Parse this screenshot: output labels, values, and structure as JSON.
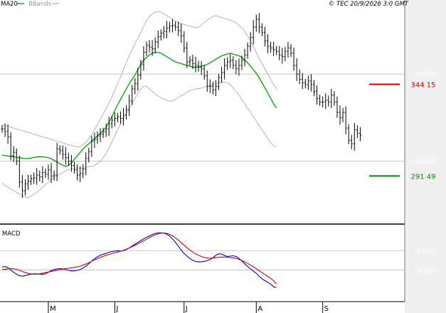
{
  "header": {
    "ma_label": "MA20",
    "bbands_label": "BBands",
    "copyright": "© TEC 20/9/2026 3:0 GMT"
  },
  "colors": {
    "background": "#ffffff",
    "grid": "#c8c8c8",
    "axis_band": "#f0f0f0",
    "ma_line": "#00a000",
    "bands": "#b4b4b4",
    "price_bars": "#000000",
    "macd_line": "#0000cc",
    "signal_line": "#cc0000",
    "resistance": "#cc0000",
    "support": "#008800"
  },
  "chart_data": [
    {
      "type": "ohlc",
      "panel": "price",
      "ylim": [
        27000,
        38600
      ],
      "yticks": [
        {
          "value": 30000,
          "label": "30000"
        },
        {
          "value": 35000,
          "label": "35000"
        }
      ],
      "x_ticks": [
        {
          "index": 16,
          "label": "M"
        },
        {
          "index": 39,
          "label": "J"
        },
        {
          "index": 63,
          "label": "J"
        },
        {
          "index": 88,
          "label": "A"
        },
        {
          "index": 111,
          "label": "S"
        }
      ],
      "indicators": [
        {
          "name": "MA20"
        },
        {
          "name": "BBands"
        }
      ],
      "levels": [
        {
          "value": 34415,
          "label": "344 15",
          "kind": "resistance"
        },
        {
          "value": 29149,
          "label": "291 49",
          "kind": "support"
        }
      ],
      "series": {
        "close": [
          31850,
          31700,
          31400,
          30300,
          30500,
          30000,
          28800,
          28300,
          28700,
          28850,
          29000,
          29050,
          29200,
          29100,
          29350,
          29250,
          29500,
          29150,
          29200,
          30700,
          30600,
          30400,
          30200,
          30000,
          29750,
          29500,
          29200,
          29300,
          29550,
          30150,
          30550,
          31150,
          31250,
          31450,
          31550,
          31700,
          31850,
          32150,
          32350,
          32450,
          32550,
          32450,
          32650,
          32950,
          33450,
          34150,
          34450,
          34950,
          35550,
          36250,
          36650,
          36550,
          36450,
          36850,
          37150,
          37350,
          37450,
          37650,
          37750,
          37800,
          37700,
          37500,
          37200,
          36500,
          35700,
          35800,
          35600,
          35500,
          35400,
          35300,
          34900,
          34300,
          34300,
          34100,
          34300,
          34800,
          35100,
          35500,
          35700,
          35800,
          35500,
          35300,
          35500,
          35800,
          36100,
          36600,
          37100,
          37700,
          38150,
          37700,
          37400,
          36900,
          36600,
          36500,
          36400,
          36300,
          36100,
          36000,
          36300,
          36500,
          36200,
          35500,
          35000,
          34700,
          34500,
          34400,
          34600,
          34400,
          34000,
          33600,
          33400,
          33400,
          33500,
          33400,
          33800,
          33400,
          32800,
          32500,
          32800,
          31900,
          31200,
          31000,
          31800,
          31600,
          31500
        ],
        "ma20": [
          30350,
          30320,
          30300,
          30270,
          30250,
          30220,
          30200,
          30170,
          30150,
          30150,
          30180,
          30210,
          30240,
          30260,
          30250,
          30230,
          30200,
          30130,
          30050,
          29950,
          29850,
          29760,
          29700,
          29750,
          29900,
          30100,
          30300,
          30500,
          30700,
          30850,
          31000,
          31150,
          31300,
          31450,
          31600,
          31750,
          31950,
          32250,
          32550,
          32900,
          33250,
          33550,
          33850,
          34150,
          34450,
          34700,
          34950,
          35250,
          35550,
          35800,
          35950,
          36100,
          36200,
          36250,
          36250,
          36200,
          36100,
          36000,
          35900,
          35800,
          35700,
          35650,
          35600,
          35550,
          35500,
          35450,
          35400,
          35400,
          35400,
          35450,
          35500,
          35550,
          35650,
          35750,
          35850,
          35950,
          36050,
          36100,
          36150,
          36200,
          36150,
          36100,
          36050,
          35950,
          35800,
          35650,
          35450,
          35250,
          35050,
          34800,
          34500,
          34200,
          33900,
          33600,
          33300,
          33050
        ],
        "bb_upper": [
          32100,
          32050,
          32000,
          31950,
          31900,
          31850,
          31800,
          31750,
          31700,
          31650,
          31600,
          31550,
          31500,
          31450,
          31400,
          31350,
          31300,
          31250,
          31200,
          31150,
          31100,
          31050,
          31000,
          30950,
          30900,
          30850,
          30800,
          30850,
          30950,
          31100,
          31300,
          31550,
          31800,
          32100,
          32400,
          32700,
          33000,
          33350,
          33700,
          34050,
          34450,
          34850,
          35250,
          35650,
          36050,
          36400,
          36750,
          37050,
          37400,
          37750,
          38050,
          38300,
          38450,
          38550,
          38600,
          38550,
          38450,
          38350,
          38250,
          38150,
          38050,
          37950,
          37900,
          37850,
          37800,
          37750,
          37700,
          37650,
          37700,
          37800,
          37950,
          38100,
          38200,
          38300,
          38350,
          38300,
          38250,
          38200,
          38150,
          38100,
          38050,
          37950,
          37800,
          37650,
          37450,
          37200,
          36900,
          36600,
          36250,
          35900,
          35600,
          35300,
          35000,
          34700,
          34400,
          34150
        ],
        "bb_lower": [
          28750,
          28600,
          28500,
          28400,
          28300,
          28200,
          28100,
          28000,
          27950,
          27900,
          28000,
          28100,
          28200,
          28350,
          28500,
          28650,
          28800,
          28950,
          29050,
          29150,
          29250,
          29350,
          29450,
          29500,
          29550,
          29600,
          29600,
          29600,
          29600,
          29650,
          29700,
          29700,
          29750,
          29850,
          30000,
          30200,
          30450,
          30750,
          31100,
          31450,
          31800,
          32150,
          32450,
          32750,
          33000,
          33300,
          33600,
          33900,
          34150,
          34300,
          34300,
          34150,
          34000,
          33850,
          33750,
          33650,
          33550,
          33500,
          33450,
          33450,
          33550,
          33650,
          33750,
          33850,
          33950,
          34050,
          34100,
          34150,
          34150,
          34200,
          34250,
          34300,
          34350,
          34400,
          34450,
          34500,
          34550,
          34550,
          34500,
          34400,
          34200,
          34000,
          33800,
          33550,
          33300,
          33050,
          32800,
          32550,
          32300,
          32050,
          31800,
          31550,
          31300,
          31050,
          30900,
          30800
        ]
      }
    },
    {
      "type": "line",
      "panel": "MACD",
      "title": "MACD",
      "ylim": [
        -1500,
        2200
      ],
      "yticks": [
        {
          "value": 1000,
          "label": "1000"
        },
        {
          "value": 0,
          "label": "0.00"
        }
      ],
      "series": [
        {
          "name": "MACD",
          "values": [
            150,
            180,
            120,
            0,
            -120,
            -220,
            -300,
            -320,
            -300,
            -250,
            -220,
            -200,
            -200,
            -220,
            -230,
            -200,
            -120,
            -30,
            20,
            50,
            70,
            50,
            20,
            -20,
            -50,
            -50,
            -20,
            20,
            100,
            200,
            320,
            460,
            580,
            690,
            760,
            820,
            860,
            920,
            960,
            980,
            1000,
            980,
            1000,
            1060,
            1140,
            1240,
            1330,
            1430,
            1530,
            1620,
            1700,
            1770,
            1840,
            1900,
            1920,
            1930,
            1920,
            1860,
            1760,
            1620,
            1440,
            1240,
            1040,
            860,
            720,
            600,
            500,
            440,
            420,
            420,
            450,
            480,
            540,
            640,
            760,
            840,
            820,
            750,
            700,
            720,
            740,
            700,
            600,
            470,
            320,
            180,
            60,
            -60,
            -180,
            -330,
            -460,
            -560,
            -640,
            -740,
            -880,
            -910
          ]
        },
        {
          "name": "Signal",
          "values": [
            20,
            40,
            60,
            70,
            60,
            30,
            -20,
            -80,
            -140,
            -180,
            -210,
            -220,
            -220,
            -200,
            -170,
            -140,
            -110,
            -80,
            -50,
            -20,
            10,
            40,
            70,
            90,
            110,
            130,
            160,
            200,
            250,
            310,
            380,
            450,
            520,
            590,
            650,
            710,
            760,
            810,
            850,
            890,
            930,
            970,
            1020,
            1080,
            1140,
            1210,
            1280,
            1360,
            1440,
            1520,
            1600,
            1680,
            1760,
            1830,
            1880,
            1910,
            1920,
            1900,
            1850,
            1770,
            1670,
            1550,
            1420,
            1290,
            1160,
            1040,
            930,
            840,
            760,
            700,
            650,
            620,
            610,
            620,
            640,
            660,
            670,
            670,
            660,
            650,
            630,
            600,
            550,
            490,
            420,
            340,
            250,
            160,
            60,
            -40,
            -140,
            -240,
            -340,
            -440,
            -560,
            -720
          ]
        }
      ]
    }
  ]
}
